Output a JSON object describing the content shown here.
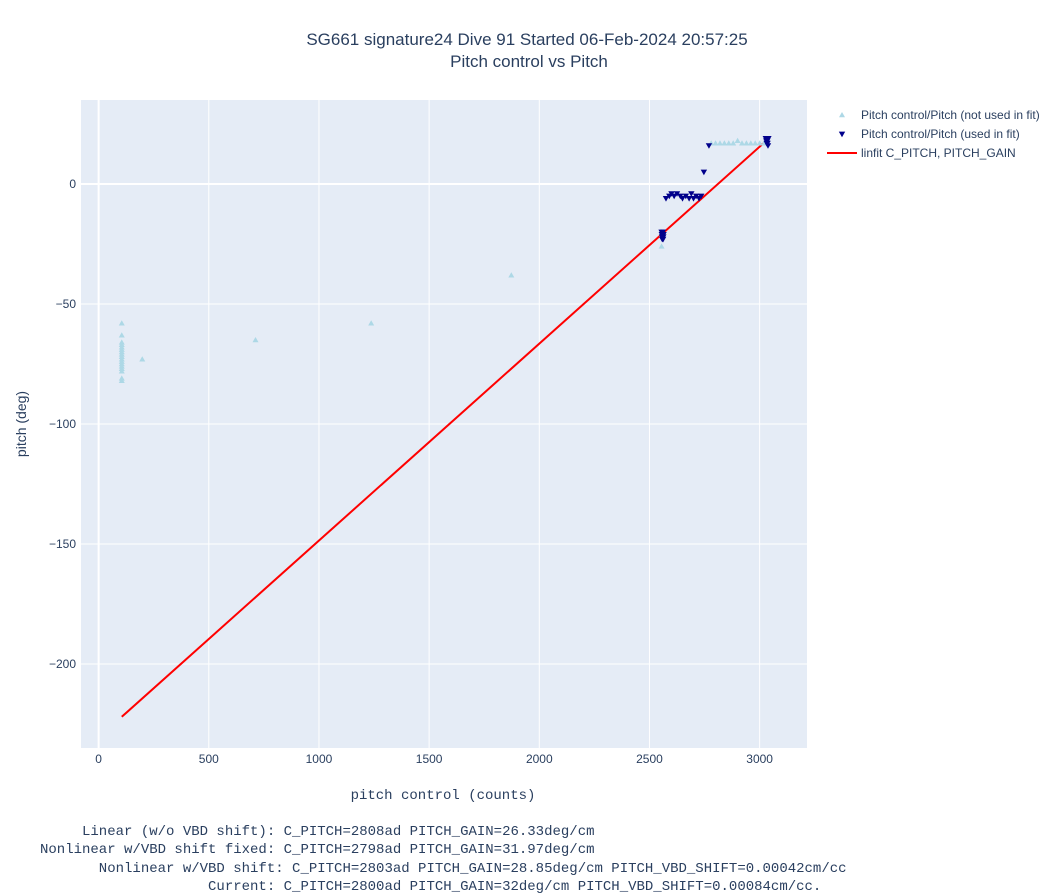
{
  "chart_data": {
    "type": "scatter",
    "title": "SG661 signature24 Dive 91 Started 06-Feb-2024 20:57:25",
    "subtitle": "Pitch control vs Pitch",
    "xlabel": "pitch control (counts)",
    "ylabel": "pitch (deg)",
    "xlim": [
      -80,
      3215
    ],
    "ylim": [
      -235,
      35
    ],
    "xticks": [
      0,
      500,
      1000,
      1500,
      2000,
      2500,
      3000
    ],
    "xtick_labels": [
      "0",
      "500",
      "1000",
      "1500",
      "2000",
      "2500",
      "3000"
    ],
    "yticks": [
      0,
      -50,
      -100,
      -150,
      -200
    ],
    "ytick_labels": [
      "0",
      "−50",
      "−100",
      "−150",
      "−200"
    ],
    "grid": true,
    "legend_position": "top-right outside",
    "colors": {
      "plot_bg": "#e5ecf6",
      "grid": "#ffffff",
      "not_used": "#add8e6",
      "used": "#00008b",
      "fit": "#ff0000"
    },
    "series": [
      {
        "name": "Pitch control/Pitch (not used in fit)",
        "marker": "triangle-up",
        "color": "#add8e6",
        "points": [
          [
            105,
            -58
          ],
          [
            105,
            -63
          ],
          [
            105,
            -66
          ],
          [
            105,
            -67
          ],
          [
            105,
            -68
          ],
          [
            105,
            -69
          ],
          [
            105,
            -70
          ],
          [
            105,
            -71
          ],
          [
            105,
            -72
          ],
          [
            105,
            -73
          ],
          [
            105,
            -74
          ],
          [
            105,
            -75
          ],
          [
            105,
            -76
          ],
          [
            105,
            -77
          ],
          [
            105,
            -78
          ],
          [
            105,
            -81
          ],
          [
            105,
            -82
          ],
          [
            198,
            -73
          ],
          [
            712,
            -65
          ],
          [
            1237,
            -58
          ],
          [
            1873,
            -38
          ],
          [
            2555,
            -26
          ],
          [
            2556,
            -20
          ],
          [
            2558,
            -21
          ],
          [
            2780,
            17
          ],
          [
            2800,
            17
          ],
          [
            2820,
            17
          ],
          [
            2840,
            17
          ],
          [
            2860,
            17
          ],
          [
            2880,
            17
          ],
          [
            2900,
            18
          ],
          [
            2920,
            17
          ],
          [
            2940,
            17
          ],
          [
            2960,
            17
          ],
          [
            2980,
            17
          ],
          [
            3000,
            17
          ],
          [
            3020,
            17
          ]
        ]
      },
      {
        "name": "Pitch control/Pitch (used in fit)",
        "marker": "triangle-down",
        "color": "#00008b",
        "points": [
          [
            2555,
            -20
          ],
          [
            2556,
            -21
          ],
          [
            2557,
            -22
          ],
          [
            2558,
            -23
          ],
          [
            2559,
            -22
          ],
          [
            2560,
            -21
          ],
          [
            2561,
            -20
          ],
          [
            2562,
            -23
          ],
          [
            2563,
            -22
          ],
          [
            2564,
            -21
          ],
          [
            2575,
            -6
          ],
          [
            2590,
            -5
          ],
          [
            2600,
            -4
          ],
          [
            2612,
            -5
          ],
          [
            2625,
            -4
          ],
          [
            2640,
            -5
          ],
          [
            2650,
            -6
          ],
          [
            2665,
            -5
          ],
          [
            2680,
            -6
          ],
          [
            2690,
            -4
          ],
          [
            2700,
            -6
          ],
          [
            2712,
            -5
          ],
          [
            2725,
            -6
          ],
          [
            2735,
            -5
          ],
          [
            2747,
            5
          ],
          [
            2770,
            16
          ],
          [
            3028,
            19
          ],
          [
            3030,
            18
          ],
          [
            3032,
            17
          ],
          [
            3034,
            19
          ],
          [
            3035,
            18
          ],
          [
            3036,
            17
          ],
          [
            3038,
            16
          ],
          [
            3040,
            19
          ]
        ]
      },
      {
        "name": "linfit C_PITCH, PITCH_GAIN",
        "type": "line",
        "color": "#ff0000",
        "x": [
          105,
          3030
        ],
        "y": [
          -222,
          18
        ]
      }
    ]
  },
  "footer_lines": [
    "     Linear (w/o VBD shift): C_PITCH=2808ad PITCH_GAIN=26.33deg/cm",
    "Nonlinear w/VBD shift fixed: C_PITCH=2798ad PITCH_GAIN=31.97deg/cm",
    "       Nonlinear w/VBD shift: C_PITCH=2803ad PITCH_GAIN=28.85deg/cm PITCH_VBD_SHIFT=0.00042cm/cc",
    "                    Current: C_PITCH=2800ad PITCH_GAIN=32deg/cm PITCH_VBD_SHIFT=0.00084cm/cc."
  ]
}
